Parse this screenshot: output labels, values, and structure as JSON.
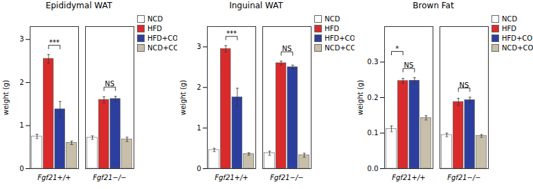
{
  "chart_data": [
    {
      "type": "bar",
      "title": "Epididymal WAT",
      "ylabel": "weight (g)",
      "ylim": [
        0,
        3.3
      ],
      "yticks": [
        0,
        1,
        2,
        3
      ],
      "categories": [
        "Fgf21+/+",
        "Fgf21−/−"
      ],
      "series": [
        {
          "name": "NCD",
          "color": "#ffffff",
          "values": [
            0.75,
            0.72
          ],
          "errors": [
            0.05,
            0.04
          ]
        },
        {
          "name": "HFD",
          "color": "#d92b2b",
          "values": [
            2.55,
            1.6
          ],
          "errors": [
            0.1,
            0.07
          ]
        },
        {
          "name": "HFD+CO",
          "color": "#2d3f9e",
          "values": [
            1.38,
            1.62
          ],
          "errors": [
            0.18,
            0.06
          ]
        },
        {
          "name": "NCD+CO",
          "color": "#c8bfaa",
          "values": [
            0.6,
            0.68
          ],
          "errors": [
            0.04,
            0.05
          ]
        }
      ],
      "legend": "right",
      "annotations": [
        {
          "text": "***",
          "category": "Fgf21+/+",
          "between": [
            "HFD",
            "HFD+CO"
          ]
        },
        {
          "text": "NS",
          "category": "Fgf21−/−",
          "between": [
            "HFD",
            "HFD+CO"
          ]
        }
      ]
    },
    {
      "type": "bar",
      "title": "Inguinal WAT",
      "ylabel": "weight (g)",
      "ylim": [
        0,
        3.5
      ],
      "yticks": [
        0,
        1,
        2,
        3
      ],
      "categories": [
        "Fgf21+/+",
        "Fgf21−/−"
      ],
      "series": [
        {
          "name": "NCD",
          "color": "#ffffff",
          "values": [
            0.46,
            0.38
          ],
          "errors": [
            0.04,
            0.05
          ]
        },
        {
          "name": "HFD",
          "color": "#d92b2b",
          "values": [
            2.95,
            2.6
          ],
          "errors": [
            0.08,
            0.05
          ]
        },
        {
          "name": "HFD+CO",
          "color": "#2d3f9e",
          "values": [
            1.76,
            2.5
          ],
          "errors": [
            0.22,
            0.05
          ]
        },
        {
          "name": "NCD+CO",
          "color": "#c8bfaa",
          "values": [
            0.36,
            0.33
          ],
          "errors": [
            0.03,
            0.05
          ]
        }
      ],
      "legend": "right",
      "annotations": [
        {
          "text": "***",
          "category": "Fgf21+/+",
          "between": [
            "HFD",
            "HFD+CO"
          ]
        },
        {
          "text": "NS",
          "category": "Fgf21−/−",
          "between": [
            "HFD",
            "HFD+CO"
          ]
        }
      ]
    },
    {
      "type": "bar",
      "title": "Brown Fat",
      "ylabel": "weight (g)",
      "ylim": [
        0,
        0.4
      ],
      "yticks": [
        {
          "value": 0,
          "label": "0.0"
        },
        0.1,
        0.2,
        0.3
      ],
      "categories": [
        "Fgf21+/+",
        "Fgf21−/−"
      ],
      "series": [
        {
          "name": "NCD",
          "color": "#ffffff",
          "values": [
            0.112,
            0.095
          ],
          "errors": [
            0.008,
            0.005
          ]
        },
        {
          "name": "HFD",
          "color": "#d92b2b",
          "values": [
            0.247,
            0.188
          ],
          "errors": [
            0.007,
            0.01
          ]
        },
        {
          "name": "HFD+CO",
          "color": "#2d3f9e",
          "values": [
            0.248,
            0.193
          ],
          "errors": [
            0.008,
            0.008
          ]
        },
        {
          "name": "NCD+CO",
          "color": "#c8bfaa",
          "values": [
            0.143,
            0.092
          ],
          "errors": [
            0.006,
            0.004
          ]
        }
      ],
      "legend": "right",
      "annotations": [
        {
          "text": "*",
          "category": "Fgf21+/+",
          "between": [
            "NCD",
            "HFD"
          ]
        },
        {
          "text": "NS",
          "category": "Fgf21+/+",
          "between": [
            "HFD",
            "HFD+CO"
          ]
        },
        {
          "text": "NS",
          "category": "Fgf21−/−",
          "between": [
            "HFD",
            "HFD+CO"
          ]
        }
      ]
    }
  ]
}
